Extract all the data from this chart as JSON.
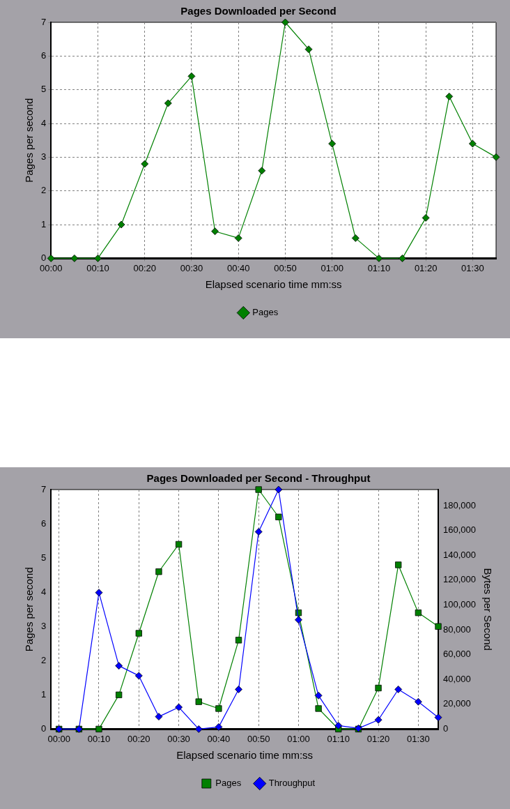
{
  "chart_data": [
    {
      "type": "line",
      "title": "Pages Downloaded per Second",
      "xlabel": "Elapsed scenario time mm:ss",
      "ylabel": "Pages per second",
      "x": [
        0,
        5,
        10,
        15,
        20,
        25,
        30,
        35,
        40,
        45,
        50,
        55,
        60,
        65,
        70,
        75,
        80,
        85,
        90,
        95
      ],
      "series": [
        {
          "name": "Pages",
          "color": "#008000",
          "marker": "diamond",
          "values": [
            0,
            0,
            0,
            1.0,
            2.8,
            4.6,
            5.4,
            0.8,
            0.6,
            2.6,
            7.0,
            6.2,
            3.4,
            0.6,
            0,
            0,
            1.2,
            4.8,
            3.4,
            3.0
          ]
        }
      ],
      "xlim": [
        0,
        95
      ],
      "xticks": [
        {
          "value": 0,
          "label": "00:00"
        },
        {
          "value": 10,
          "label": "00:10"
        },
        {
          "value": 20,
          "label": "00:20"
        },
        {
          "value": 30,
          "label": "00:30"
        },
        {
          "value": 40,
          "label": "00:40"
        },
        {
          "value": 50,
          "label": "00:50"
        },
        {
          "value": 60,
          "label": "01:00"
        },
        {
          "value": 70,
          "label": "01:10"
        },
        {
          "value": 80,
          "label": "01:20"
        },
        {
          "value": 90,
          "label": "01:30"
        }
      ],
      "ylim": [
        0,
        7
      ],
      "yticks": [
        0,
        1,
        2,
        3,
        4,
        5,
        6,
        7
      ],
      "grid": true,
      "legend": "bottom",
      "line_style": "solid"
    },
    {
      "type": "line",
      "title": "Pages Downloaded per Second - Throughput",
      "xlabel": "Elapsed scenario time mm:ss",
      "ylabel": "Pages per second",
      "y2label": "Bytes per Second",
      "x": [
        0,
        5,
        10,
        15,
        20,
        25,
        30,
        35,
        40,
        45,
        50,
        55,
        60,
        65,
        70,
        75,
        80,
        85,
        90,
        95
      ],
      "series": [
        {
          "name": "Pages",
          "color": "#008000",
          "marker": "square",
          "values": [
            0,
            0,
            0,
            1.0,
            2.8,
            4.6,
            5.4,
            0.8,
            0.6,
            2.6,
            7.0,
            6.2,
            3.4,
            0.6,
            0,
            0,
            1.2,
            4.8,
            3.4,
            3.0
          ]
        },
        {
          "name": "Throughput",
          "color": "#0000ff",
          "marker": "diamond",
          "axis": "y2",
          "values": [
            0,
            0,
            110000,
            51000,
            43000,
            10000,
            17600,
            0,
            1700,
            32000,
            159000,
            193000,
            88000,
            27000,
            2800,
            600,
            7400,
            32000,
            22000,
            9400
          ]
        }
      ],
      "xlim": [
        -2,
        95
      ],
      "xticks": [
        {
          "value": 0,
          "label": "00:00"
        },
        {
          "value": 10,
          "label": "00:10"
        },
        {
          "value": 20,
          "label": "00:20"
        },
        {
          "value": 30,
          "label": "00:30"
        },
        {
          "value": 40,
          "label": "00:40"
        },
        {
          "value": 50,
          "label": "00:50"
        },
        {
          "value": 60,
          "label": "01:00"
        },
        {
          "value": 70,
          "label": "01:10"
        },
        {
          "value": 80,
          "label": "01:20"
        },
        {
          "value": 90,
          "label": "01:30"
        }
      ],
      "ylim": [
        0,
        7
      ],
      "yticks": [
        0,
        1,
        2,
        3,
        4,
        5,
        6,
        7
      ],
      "y2lim": [
        0,
        193000
      ],
      "y2ticks": [
        0,
        {
          "value": 20000,
          "label": "20,000"
        },
        {
          "value": 40000,
          "label": "40,000"
        },
        {
          "value": 60000,
          "label": "60,000"
        },
        {
          "value": 80000,
          "label": "80,000"
        },
        {
          "value": 100000,
          "label": "100,000"
        },
        {
          "value": 120000,
          "label": "120,000"
        },
        {
          "value": 140000,
          "label": "140,000"
        },
        {
          "value": 160000,
          "label": "160,000"
        },
        {
          "value": 180000,
          "label": "180,000"
        }
      ],
      "grid": "x",
      "legend": "bottom",
      "line_style": "solid"
    }
  ]
}
